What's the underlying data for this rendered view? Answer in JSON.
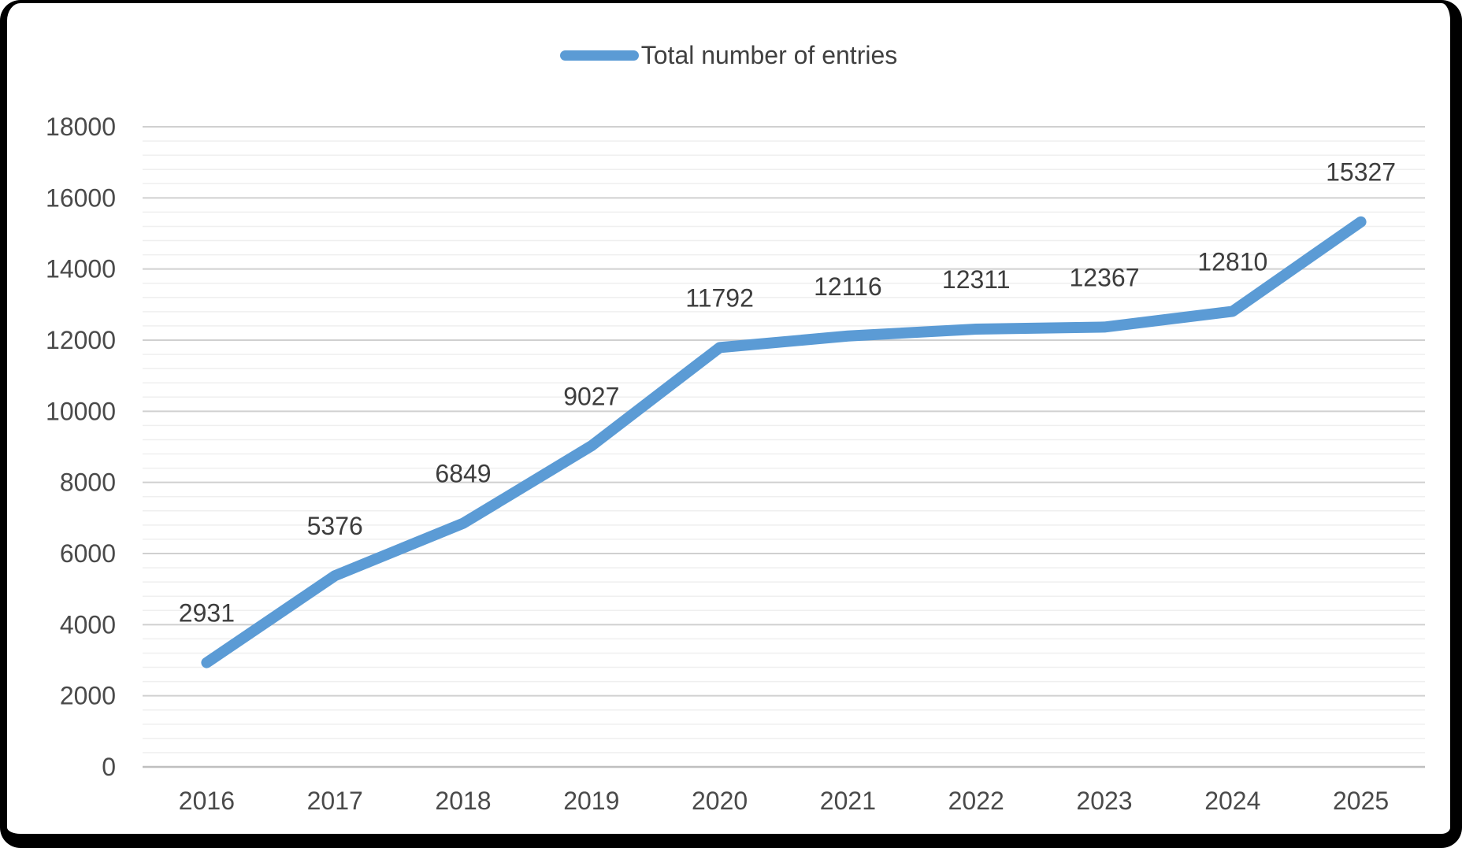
{
  "frame": {
    "border_color": "#000000",
    "background_color": "#ffffff"
  },
  "chart_data": {
    "type": "line",
    "title": "",
    "legend": {
      "label": "Total number of entries",
      "position": "top"
    },
    "categories": [
      "2016",
      "2017",
      "2018",
      "2019",
      "2020",
      "2021",
      "2022",
      "2023",
      "2024",
      "2025"
    ],
    "series": [
      {
        "name": "Total number of entries",
        "values": [
          2931,
          5376,
          6849,
          9027,
          11792,
          12116,
          12311,
          12367,
          12810,
          15327
        ],
        "color": "#5B9BD5"
      }
    ],
    "data_labels_shown": true,
    "xlabel": "",
    "ylabel": "",
    "ylim": [
      0,
      18000
    ],
    "y_major_step": 2000,
    "y_minor_step": 400,
    "y_tick_labels": [
      "0",
      "2000",
      "4000",
      "6000",
      "8000",
      "10000",
      "12000",
      "14000",
      "16000",
      "18000"
    ],
    "grid": {
      "major": true,
      "minor": true
    },
    "colors": {
      "line": "#5B9BD5",
      "major_grid": "#d0d0d0",
      "minor_grid": "#efefef",
      "axis_line": "#bfbfbf",
      "axis_text": "#4a4a4a",
      "label_text": "#3d3d3d",
      "legend_text": "#404040"
    }
  }
}
